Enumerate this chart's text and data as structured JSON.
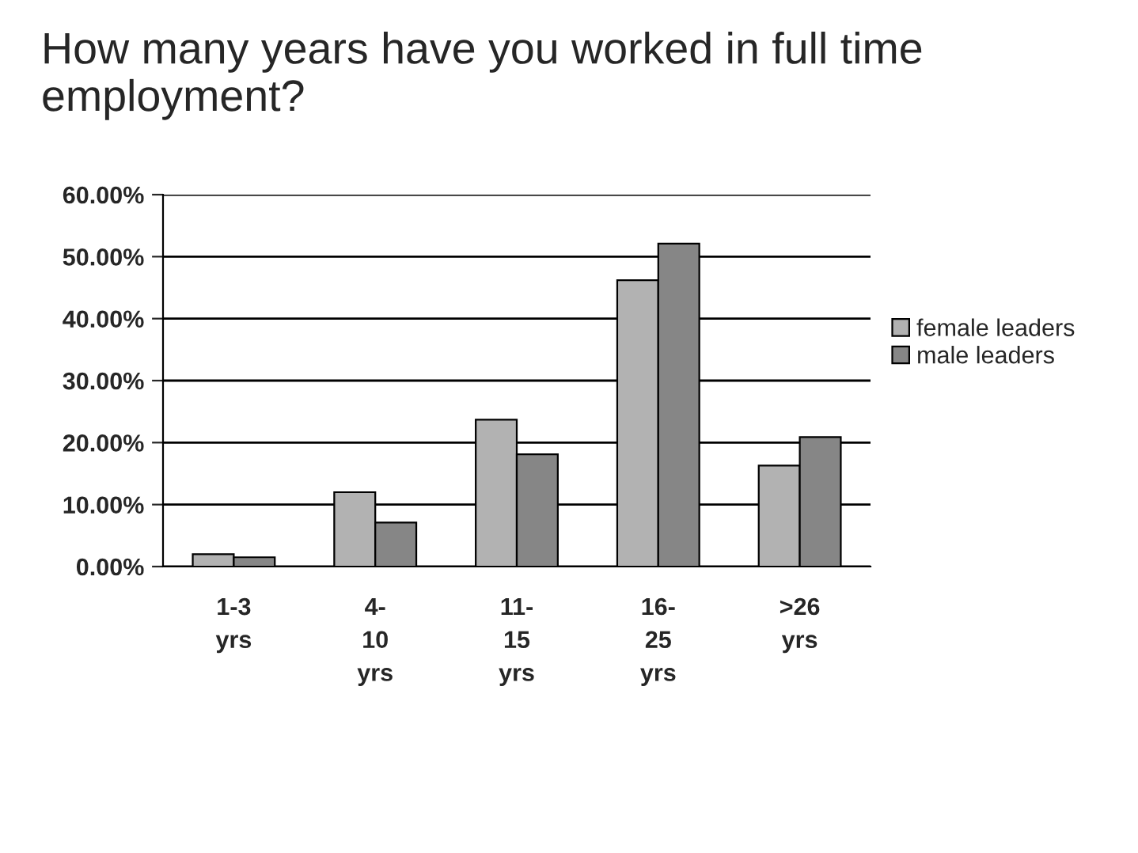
{
  "chart_data": {
    "type": "bar",
    "title": "How many years have you worked in full time employment?",
    "categories": [
      "1-3\nyrs",
      "4-\n10\nyrs",
      "11-\n15\nyrs",
      "16-\n25\nyrs",
      ">26\nyrs"
    ],
    "series": [
      {
        "name": "female leaders",
        "color": "#b2b2b2",
        "values": [
          2.0,
          12.0,
          23.7,
          46.2,
          16.3
        ]
      },
      {
        "name": "male leaders",
        "color": "#868686",
        "values": [
          1.5,
          7.1,
          18.1,
          52.1,
          20.9
        ]
      }
    ],
    "ylim": [
      0,
      60
    ],
    "yticks": [
      {
        "value": 0,
        "label": "0.00%"
      },
      {
        "value": 10,
        "label": "10.00%"
      },
      {
        "value": 20,
        "label": "20.00%"
      },
      {
        "value": 30,
        "label": "30.00%"
      },
      {
        "value": 40,
        "label": "40.00%"
      },
      {
        "value": 50,
        "label": "50.00%"
      },
      {
        "value": 60,
        "label": "60.00%"
      }
    ],
    "grid": "y",
    "legend": "right"
  }
}
